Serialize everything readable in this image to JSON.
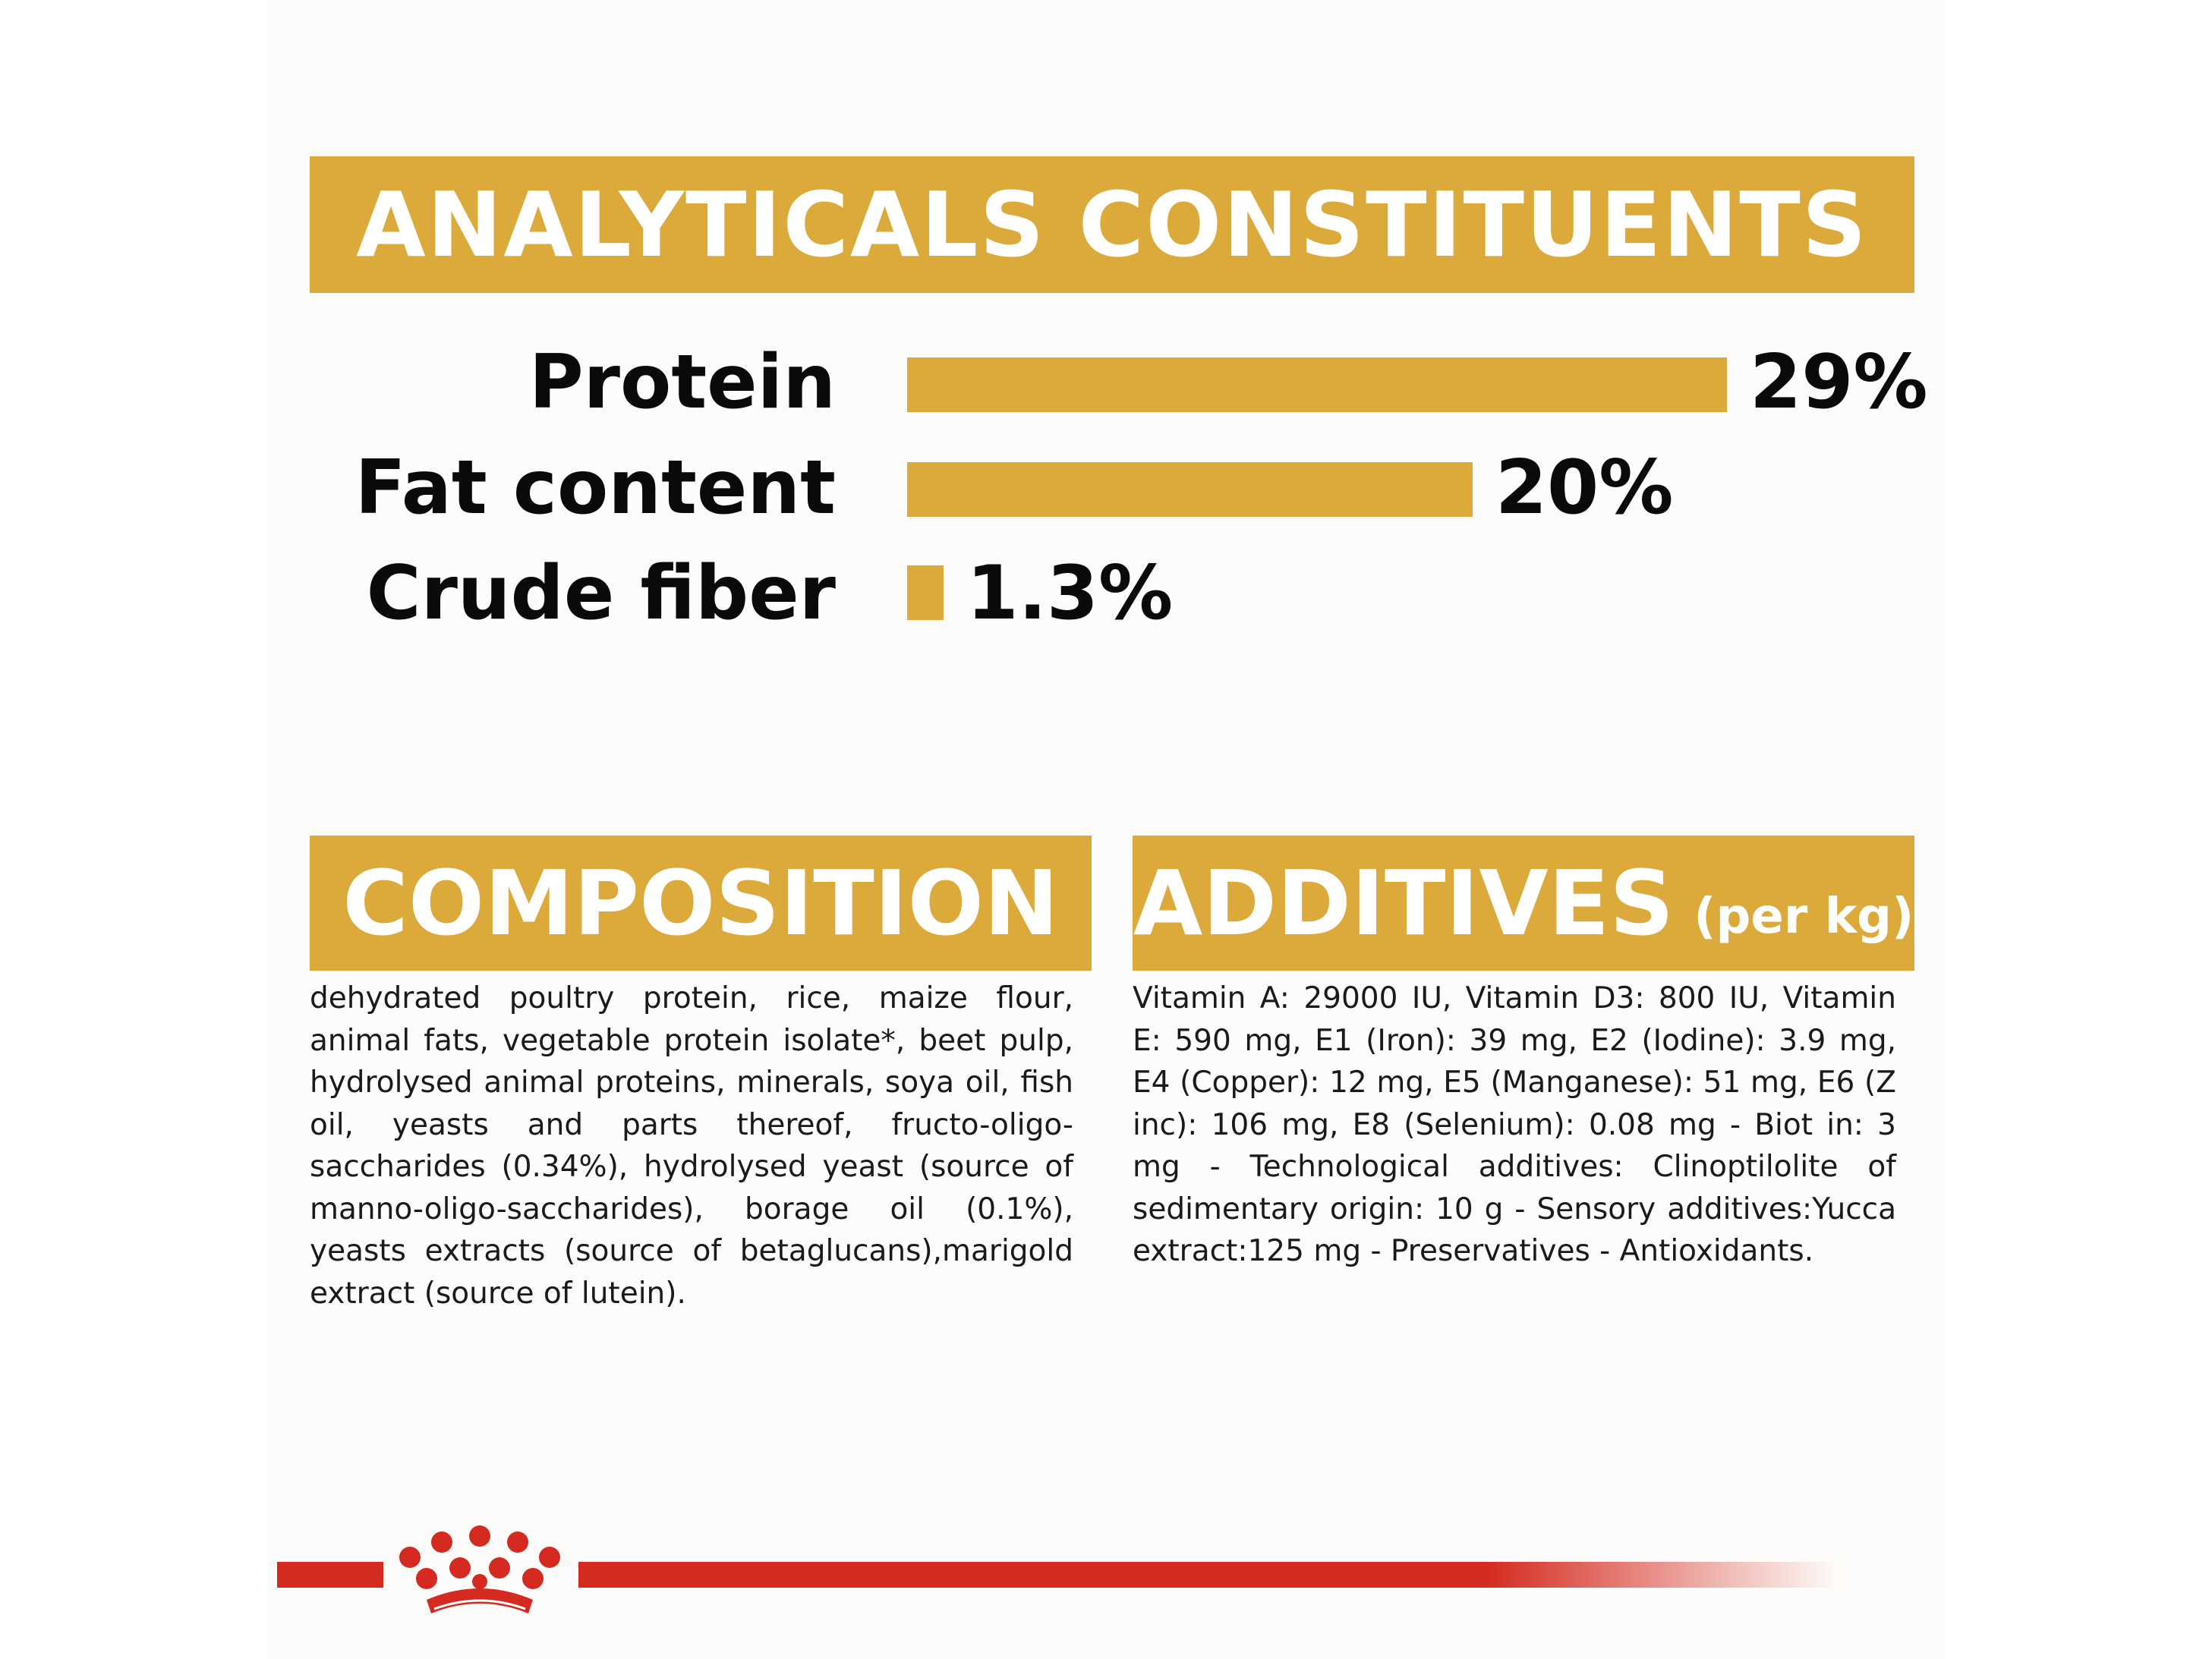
{
  "colors": {
    "accent": "#dcaa3a",
    "brand_red": "#d42a1f",
    "text": "#0a0a0a"
  },
  "headers": {
    "analytical": "ANALYTICALS CONSTITUENTS",
    "composition": "COMPOSITION",
    "additives": "ADDITIVES",
    "additives_unit": "(per kg)"
  },
  "chart_data": {
    "type": "bar",
    "orientation": "horizontal",
    "categories": [
      "Protein",
      "Fat content",
      "Crude fiber"
    ],
    "values": [
      29,
      20,
      1.3
    ],
    "value_labels": [
      "29%",
      "20%",
      "1.3%"
    ],
    "unit": "%",
    "title": "ANALYTICALS CONSTITUENTS",
    "xlabel": "",
    "ylabel": "",
    "grid": false,
    "legend": "none"
  },
  "composition_text": "dehydrated poultry protein, rice, maize flour, animal fats, vegetable protein isolate*, beet pulp, hydrolysed animal proteins, minerals, soya oil, fish oil, yeasts and parts thereof, fructo-oligo-saccharides (0.34%), hydrolysed yeast (source of manno-oligo-saccharides), borage oil (0.1%), yeasts extracts (source of betaglucans),marigold extract (source of lutein).",
  "additives_text": "Vitamin A: 29000 IU, Vitamin D3: 800 IU, Vitamin E: 590 mg, E1 (Iron): 39 mg, E2 (Iodine): 3.9 mg, E4 (Copper): 12 mg, E5 (Manganese): 51 mg, E6 (Z inc): 106 mg, E8 (Selenium): 0.08 mg - Biot in: 3 mg - Technological additives: Clinoptilolite of sedimentary origin: 10 g - Sensory additives:Yucca extract:125 mg - Preservatives - Antioxidants.",
  "logo": {
    "icon": "crown-icon"
  }
}
